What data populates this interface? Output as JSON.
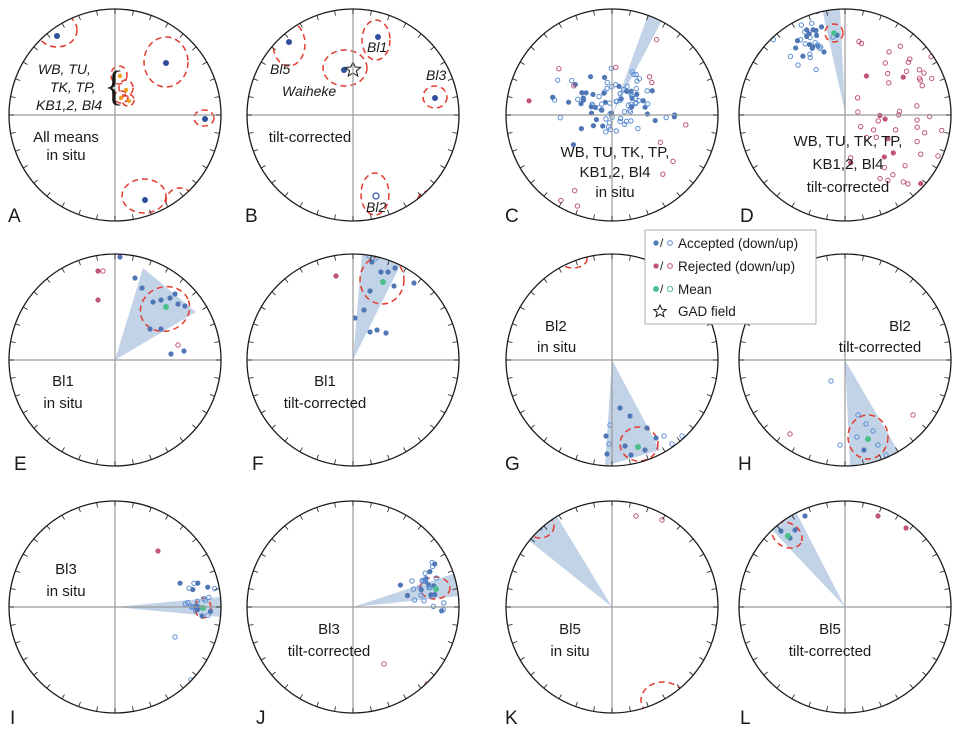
{
  "colors": {
    "accepted": "#4f76b5",
    "accepted_up": "#5b8ed3",
    "rejected": "#c05577",
    "mean": "#4cc08b",
    "ellipse": "#e23b2e",
    "cone": "#b7cbe3"
  },
  "legend": {
    "slash": "/",
    "accepted": "Accepted (down/up)",
    "rejected": "Rejected (down/up)",
    "mean": "Mean",
    "gad": "GAD field",
    "gad_icon": "star-icon"
  },
  "panels": [
    {
      "letter": "A",
      "lines": [
        "All means",
        "in situ"
      ],
      "italic": [
        "WB, TU,",
        "TK, TP,",
        "KB1,2, Bl4"
      ],
      "brace": "{"
    },
    {
      "letter": "B",
      "lines": [
        "tilt-corrected"
      ],
      "italic": [
        "Bl5",
        "Waiheke",
        "Bl1",
        "Bl3",
        "Bl2"
      ]
    },
    {
      "letter": "C",
      "lines": [
        "WB, TU, TK, TP,",
        "KB1,2, Bl4",
        "in situ"
      ]
    },
    {
      "letter": "D",
      "lines": [
        "WB, TU, TK, TP,",
        "KB1,2, Bl4",
        "tilt-corrected"
      ]
    },
    {
      "letter": "E",
      "lines": [
        "Bl1",
        "in situ"
      ]
    },
    {
      "letter": "F",
      "lines": [
        "Bl1",
        "tilt-corrected"
      ]
    },
    {
      "letter": "G",
      "lines": [
        "Bl2",
        "in situ"
      ]
    },
    {
      "letter": "H",
      "lines": [
        "Bl2",
        "tilt-corrected"
      ]
    },
    {
      "letter": "I",
      "lines": [
        "Bl3",
        "in situ"
      ]
    },
    {
      "letter": "J",
      "lines": [
        "Bl3",
        "tilt-corrected"
      ]
    },
    {
      "letter": "K",
      "lines": [
        "Bl5",
        "in situ"
      ]
    },
    {
      "letter": "L",
      "lines": [
        "Bl5",
        "tilt-corrected"
      ]
    }
  ]
}
